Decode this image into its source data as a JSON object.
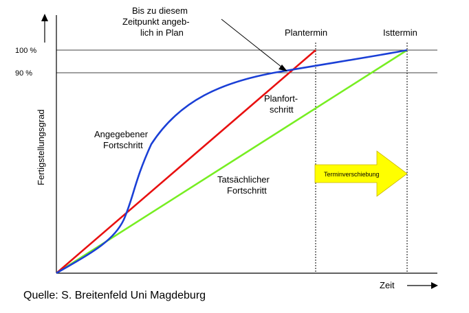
{
  "chart_data": {
    "type": "line",
    "ylabel": "Fertigstellungsgrad",
    "xlabel": "Zeit",
    "y_ticks": [
      "100 %",
      "90 %"
    ],
    "vertical_markers": [
      "Plantermin",
      "Isttermin"
    ],
    "series": [
      {
        "name": "Planfortschritt",
        "label": [
          "Planfort-",
          "schritt"
        ],
        "color": "#e81010"
      },
      {
        "name": "Angegebener Fortschritt",
        "label": [
          "Angegebener",
          "Fortschritt"
        ],
        "color": "#1a3fd6"
      },
      {
        "name": "Tatsächlicher Fortschritt",
        "label": [
          "Tatsächlicher",
          "Fortschritt"
        ],
        "color": "#77ee22"
      }
    ],
    "annotation": [
      "Bis zu diesem",
      "Zeitpunkt angeb-",
      "lich in Plan"
    ],
    "arrow_label": "Terminverschiebung",
    "arrow_color": "#ffff00"
  },
  "source": "Quelle: S. Breitenfeld Uni Magdeburg"
}
